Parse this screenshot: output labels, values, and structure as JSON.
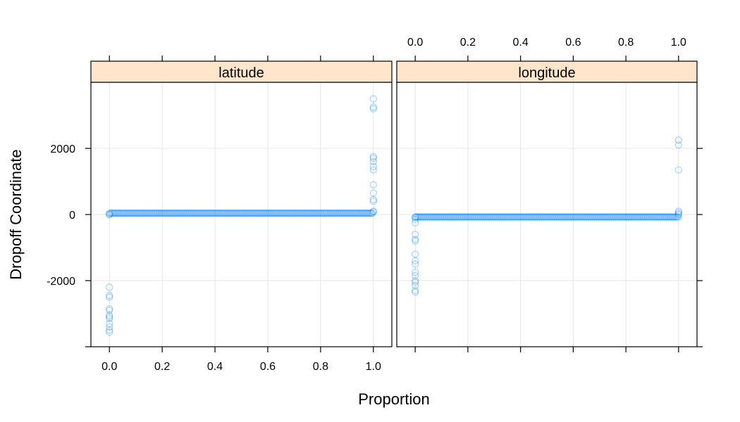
{
  "chart_data": {
    "type": "scatter",
    "xlabel": "Proportion",
    "ylabel": "Dropoff Coordinate",
    "xlim": [
      -0.07,
      1.07
    ],
    "ylim": [
      -4000,
      4000
    ],
    "x_ticks": [
      "0.0",
      "0.2",
      "0.4",
      "0.6",
      "0.8",
      "1.0"
    ],
    "y_ticks": [
      "-2000",
      "0",
      "2000"
    ],
    "grid": true,
    "point_color": "#0080ff",
    "strip_color": "#ffe5cc",
    "panels": [
      {
        "name": "latitude",
        "bulk": {
          "x_range": [
            0.0,
            1.0
          ],
          "y": 40.75
        },
        "outliers_low": [
          {
            "x": 0.0,
            "y": -2200
          },
          {
            "x": 0.0,
            "y": -2450
          },
          {
            "x": 0.0,
            "y": -2500
          },
          {
            "x": 0.0,
            "y": -2850
          },
          {
            "x": 0.0,
            "y": -2900
          },
          {
            "x": 0.0,
            "y": -3050
          },
          {
            "x": 0.0,
            "y": -3100
          },
          {
            "x": 0.0,
            "y": -3150
          },
          {
            "x": 0.0,
            "y": -3300
          },
          {
            "x": 0.0,
            "y": -3400
          },
          {
            "x": 0.0,
            "y": -3500
          },
          {
            "x": 0.0,
            "y": -3560
          },
          {
            "x": 0.0,
            "y": -10
          },
          {
            "x": 0.0,
            "y": 10
          }
        ],
        "outliers_high": [
          {
            "x": 1.0,
            "y": 80
          },
          {
            "x": 1.0,
            "y": 100
          },
          {
            "x": 1.0,
            "y": 400
          },
          {
            "x": 1.0,
            "y": 450
          },
          {
            "x": 1.0,
            "y": 650
          },
          {
            "x": 1.0,
            "y": 900
          },
          {
            "x": 1.0,
            "y": 1350
          },
          {
            "x": 1.0,
            "y": 1450
          },
          {
            "x": 1.0,
            "y": 1600
          },
          {
            "x": 1.0,
            "y": 1700
          },
          {
            "x": 1.0,
            "y": 1750
          },
          {
            "x": 1.0,
            "y": 3200
          },
          {
            "x": 1.0,
            "y": 3250
          },
          {
            "x": 1.0,
            "y": 3500
          }
        ]
      },
      {
        "name": "longitude",
        "bulk": {
          "x_range": [
            0.0,
            1.0
          ],
          "y": -73.97
        },
        "outliers_low": [
          {
            "x": 0.0,
            "y": -90
          },
          {
            "x": 0.0,
            "y": -150
          },
          {
            "x": 0.0,
            "y": -250
          },
          {
            "x": 0.0,
            "y": -600
          },
          {
            "x": 0.0,
            "y": -750
          },
          {
            "x": 0.0,
            "y": -800
          },
          {
            "x": 0.0,
            "y": -1200
          },
          {
            "x": 0.0,
            "y": -1400
          },
          {
            "x": 0.0,
            "y": -1500
          },
          {
            "x": 0.0,
            "y": -1750
          },
          {
            "x": 0.0,
            "y": -1850
          },
          {
            "x": 0.0,
            "y": -2000
          },
          {
            "x": 0.0,
            "y": -2050
          },
          {
            "x": 0.0,
            "y": -2150
          },
          {
            "x": 0.0,
            "y": -2300
          },
          {
            "x": 0.0,
            "y": -2350
          }
        ],
        "outliers_high": [
          {
            "x": 1.0,
            "y": -10
          },
          {
            "x": 1.0,
            "y": 20
          },
          {
            "x": 1.0,
            "y": 60
          },
          {
            "x": 1.0,
            "y": 100
          },
          {
            "x": 1.0,
            "y": 1350
          },
          {
            "x": 1.0,
            "y": 2100
          },
          {
            "x": 1.0,
            "y": 2250
          }
        ]
      }
    ]
  }
}
